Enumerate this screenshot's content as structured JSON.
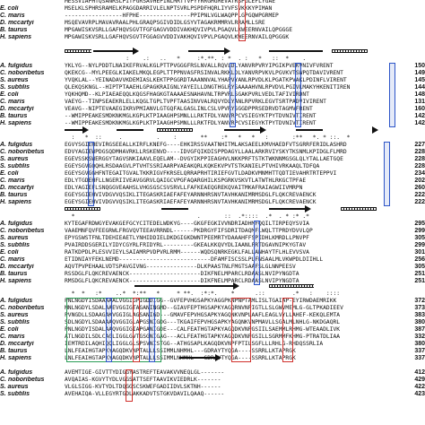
{
  "colors": {
    "red_box": "#d0312d",
    "blue_box": "#2d55c8",
    "green_box": "#2a9d56",
    "text": "#111111"
  },
  "blocks": [
    {
      "name": "block-0",
      "rows": [
        {
          "species": "",
          "seq": "MESSVIAPHTQSANRSLPITFGRSAVHEPINLMRTTVPYYRRGHGMEVATRSPGLEFLYGAE",
          "num": ""
        },
        {
          "species": "E. coli",
          "seq": "MSELKLSPHRSRAMELKPAGGDARRIVLELNPTSVRLPSPDFHQRLIYVFSVKKKYPIMAN",
          "num": ""
        },
        {
          "species": "C. maris",
          "seq": "-----------------HFPHE---------------PPIPNLVGLWAQPPLGPGQWPGRMEP",
          "num": ""
        },
        {
          "species": "D. mccartyi",
          "seq": "MSQEVAVRPLMAVAVRAALPHLGRAQPSGIVDIDLGSYVTAGAKRMMRVLRRAMLLSRE",
          "num": ""
        },
        {
          "species": "B. taurus",
          "seq": "MPGAWISKVSRLLGAFHQVSGVTFGFGAGVVDDIVAKHQVIVPVLPGAQVLKWEERNVAILQPGGGE",
          "num": ""
        },
        {
          "species": "H. sapiens",
          "seq": "MPGAWISKVSRLLGAFHQVSGVTFGGAGVVDDIVAKHQVIVPVLPGAQVLKWEERNVAILQPGGGK",
          "num": ""
        }
      ]
    },
    {
      "name": "block-1",
      "consensus": "                  :    .:   ..   *     :*.**. : *  . :   *   ::  *    .",
      "rows": [
        {
          "species": "A. fulgidus",
          "seq": "YKLYG--NYLPDDTLNAIKEFRVALKGLPTTPVGGGFRSLNVALLRQVLDLYANVRPVRYIPGIKPVEKVNIVFVRENT",
          "num": "150"
        },
        {
          "species": "C. noboribetus",
          "seq": "QKEKCG--MYLPEEGLKIAKELMKQLEGPLTTPPNVASFRSINVALRKKLDLYANVRPVKVLPGVKVTSWPQTDAVIVRENT",
          "num": "149"
        },
        {
          "species": "S. aureus",
          "seq": "YVQKLAL--YEINADAVVKDEMIASLKEKTPPGGRDTAAANNVALYHAPVYANLRPVDLKLPGATKPVAKLPDINFLVIRENT",
          "num": "145"
        },
        {
          "species": "S. subtilis",
          "seq": "QLEKQSKNGL--HIPTPTAAEHLGPAGKRAIGNLYAYEILLDNGTHGLRYSAAAAHVNLRPVDVLPGIVLMAKYHKENITIREN",
          "num": "144"
        },
        {
          "species": "E. coli",
          "seq": "YQKHQMD--KLPIAEAEQQLKQGSFHAGKGTAAAAESNAHAVNLTRPVRLSGAKPVRLVEDLTAFIVIRDNT",
          "num": "148"
        },
        {
          "species": "C. maris",
          "seq": "VAEYG--TINPSEAEKRLELLKQGLTGPLTVPFTAASINVVALRQVYDLYANLRPVRKLEGVTSRTPADVIVIRENT",
          "num": "131"
        },
        {
          "species": "D. mccartyi",
          "seq": "VEAVG--NIPTEVAAEGIKRVPMIANVLGTGQFALGASLINLCSLVPVRYSGGDPPRSEDRVDTAGMVFRENT",
          "num": "160"
        },
        {
          "species": "B. taurus",
          "seq": "--WMIPPEAKESMDKNKMGLKGPLKTPIAAGHPSMNLLLRKTFDLYANVRPCVSIEGYKTPYTDVNIVTIRENT",
          "num": "142"
        },
        {
          "species": "H. sapiens",
          "seq": "--WMIPPEAKESMDKNKMGLKGPLKTPIAAGHPSMNLLLRKTFDLYANVRPCVSIEGYKTPYTDVNIVTIRENT",
          "num": "142"
        }
      ]
    },
    {
      "name": "block-2",
      "consensus": "  :   *  ::     .          .    :       **    :*   *   *   :       :**   *. * ::.  *",
      "rows": [
        {
          "species": "A. fulgidus",
          "seq": "EGVYSGIEHEVIRGSEEALLKIRFLKNEFG----EHKIRSSVAATNHITMLAKSAEELKMVHAEDFVTSGRRFERIDLASHRD",
          "num": "227"
        },
        {
          "species": "C. noboribetus",
          "seq": "EDVYAGIEWPDGSQDMHAVRKLLRSKENVD----IDVGFQIKDISPPDAGYLLAALARKRVIYSKYTKSNMLKPIDGLFLMRD",
          "num": "228"
        },
        {
          "species": "S. aureus",
          "seq": "EGEVSSKSWERGGYTAGVSNKIAAVLEQELAM--DVGYIKPPIEAGHVLNKKPRFTSTKTWKNNMGSGLQLYTALLAETGQE",
          "num": "228"
        },
        {
          "species": "S. subtilis",
          "seq": "EGEYSGVGQQHLRSDAAGVLPTVHTSSRIAARPVAEAKQRLKQKEKVPVTSTKANIELPTVHIVRKAAQLTDFQA",
          "num": "228"
        },
        {
          "species": "E. coli",
          "seq": "EGEYSGVGGHFNTEGAITGVALTKKRIGVFKRSELQRRAPRHTIRIEFGVTLDADKVMNMHTTQDTIEVAHRTRTEPPVI",
          "num": "234"
        },
        {
          "species": "C. maris",
          "seq": "EDLYTGDEHFLLNGERIIVEAVGGRVLQAIGCVPGFAQARGHILKSPGRKVSKVTLATWTHLRKGCTPFAE",
          "num": "202"
        },
        {
          "species": "D. mccartyi",
          "seq": "EDLYAGIEFLSNQGGVEAAHSLVHGSGSCSVSRVLLFAFKEAEQGREKQVAITMKAFRAIAGWIIVMRPN",
          "num": "260"
        },
        {
          "species": "B. taurus",
          "seq": "EGEYSGIEHVIVDGVVQSIKLITEGASKRIAEFAFEYARNNHRSNVTAVHKANIMRMSDGLFLQKCREVAENCK",
          "num": "222"
        },
        {
          "species": "H. sapiens",
          "seq": "EGEYSGIEHVIVDGVVQSIKLITEGASKRIAEFAFEYARNNHRSNVTAVHKANIMRMSDGLFLQKCREVAENCK",
          "num": "222"
        }
      ]
    },
    {
      "name": "block-3",
      "consensus": "  *                                    .       ::  .*::::  .*  . * :* .*",
      "rows": [
        {
          "species": "A. fulgidus",
          "seq": "KYTEGAFRDWGYEVAKGEFGCYCITEDELWDKYG----GKGFEGKIVVNDRIADHMFQQILTIRPEQYSVIA",
          "num": "295"
        },
        {
          "species": "C. noboribetus",
          "seq": "VAAEMNFQVFEEGRWLFRGVQVTEEAVRRNDL------PKDRGYFIFSDRITDAQMFLWQLTTPRDYDVVLQP",
          "num": "299"
        },
        {
          "species": "S. aureus",
          "seq": "EPYGSWSTFNLTDEHIEAETLYNHIDDIELDKDGIGKDWNTPEEMRTYDAAAHFFSPIDHLKMRDLLPNVPF",
          "num": "305"
        },
        {
          "species": "S. subtilis",
          "seq": "PVAIRDDSGERILYIDYCGYRLFRIDYRL---------GKEALKKQVYDLIAANLFRTDGAVNIPKYGTAV",
          "num": "299"
        },
        {
          "species": "E. coli",
          "seq": "RATKDPDLPLESVVIEYLSAIAMRPVDPVRLRMM------WQDSQNRKEGKLFALLANHAYTFLHLEVVSVA",
          "num": "301"
        },
        {
          "species": "C. maris",
          "seq": "ETIDNIAYFEKLNEMD---------------------------DFAMFISCSSLPLFNSAALMLVKWPDLDIIHLL",
          "num": "256"
        },
        {
          "species": "D. mccartyi",
          "seq": "AQVTPVPEHAALVDTSPAVGIVNG---------------DLKPAASTNLFMGTSAAFSLGLNNPEESV",
          "num": "305"
        },
        {
          "species": "B. taurus",
          "seq": "RSSDGLFLQKCREVAENCK---------------------DIKFNELMPARCLRDAASLNVIPYNGDTA",
          "num": "251"
        },
        {
          "species": "H. sapiens",
          "seq": "RMSDGLFLQKCREVAENCK---------------------DIKFNELMPARCLRDAASLNVIPYNGDTA",
          "num": "251"
        }
      ]
    },
    {
      "name": "block-4",
      "consensus": "  *  *   :*    ..*  *:**   *     * **.  :*:*.    *      .::        .*   :    ::::",
      "rows": [
        {
          "species": "A. fulgidus",
          "seq": "PNLNGDYISDAAAAALVGGIGPIGDDIGG--GVFEPVHGSAPKYAGGPKNPNPTAMLISLTGAIAP-EYIRWDAEMRIKK",
          "num": "372"
        },
        {
          "species": "C. noboribetus",
          "seq": "MNLNGDYLSDALAAEVGGIGTAGANINGMD--GIAVFEPTHGSAPKYAGQRNVNPIGTLLSLGWVMEMLG-GLTPKADIEEV",
          "num": "373"
        },
        {
          "species": "S. aureus",
          "seq": "PVNGDLLSDAAGAKVGGIGLAGSANIGD---GMAVFEPVHGSAPKYAGQNKVNPLAAFLEAGLVYLLAHEF-KEKQLEMTA",
          "num": "383"
        },
        {
          "species": "S. subtilis",
          "seq": "SDLNGDYLSDAAAAQVGGIGLAPGSNIGDG---TKGAIFEPVHGSAPKYAGQNKVNPMAVLLSGALMLNHLG-NKDGAQRL",
          "num": "380"
        },
        {
          "species": "E. coli",
          "seq": "PNLNGDYISDALAAQVGGIGIAPGANIGDE---CALFEATHGTAPKYAGQDKVNPGSIILSAEMMLRHMG-WTEAADLIVK",
          "num": "387"
        },
        {
          "species": "C. maris",
          "seq": "ATLNGDILSDLCAGLIGGLGVTGSGNIGAG---ACLFEATHGTAPKYAGQDKVNPGSILLSGRMMFKHMG-PTRATDLIAA",
          "num": "332"
        },
        {
          "species": "D. mccartyi",
          "seq": "IEMTRDILAQHIQQLIGGLGLSPSVNISTGG--ATHGSAPLKAGQDKVNPFPTILSGFLLLRHLG-RHDQSSRLIA",
          "num": "380"
        },
        {
          "species": "B. taurus",
          "seq": "LNLFEAIHGTAPKYAGQDKVNPTALLLSSIMMLNHMHL---GDRAYTYQGA----SSRRLLKTAPRGK",
          "num": "337"
        },
        {
          "species": "H. sapiens",
          "seq": "LNLFEAIHGTAPKYAGQDKVNPTALLLSSIMMLNHMHL---GDRAYTYQGA----SSRRLLKTAPRGK",
          "num": "337"
        }
      ]
    },
    {
      "name": "block-5",
      "consensus": "",
      "rows": [
        {
          "species": "A. fulgidus",
          "seq": "AVEMTIGE-GIVTTYDIGGYASTREFTEAVAKVVNEQLGL-------",
          "num": "412"
        },
        {
          "species": "C. noboribetus",
          "seq": "AVQAIAS-KGVYTYDLVGGSATTSEFTAAVIKVIEDRLK-------",
          "num": "429"
        },
        {
          "species": "S. aureus",
          "seq": "VLGLSIGG-KVTYDLTDQGGSCSKWEFGADIIDVLSKTNH------",
          "num": "422"
        },
        {
          "species": "S. subtilis",
          "seq": "AVEHAIQA-VLLEGYRTGDLAKKADVTSTGKVDAVILQAAQ------",
          "num": "423"
        }
      ]
    }
  ]
}
